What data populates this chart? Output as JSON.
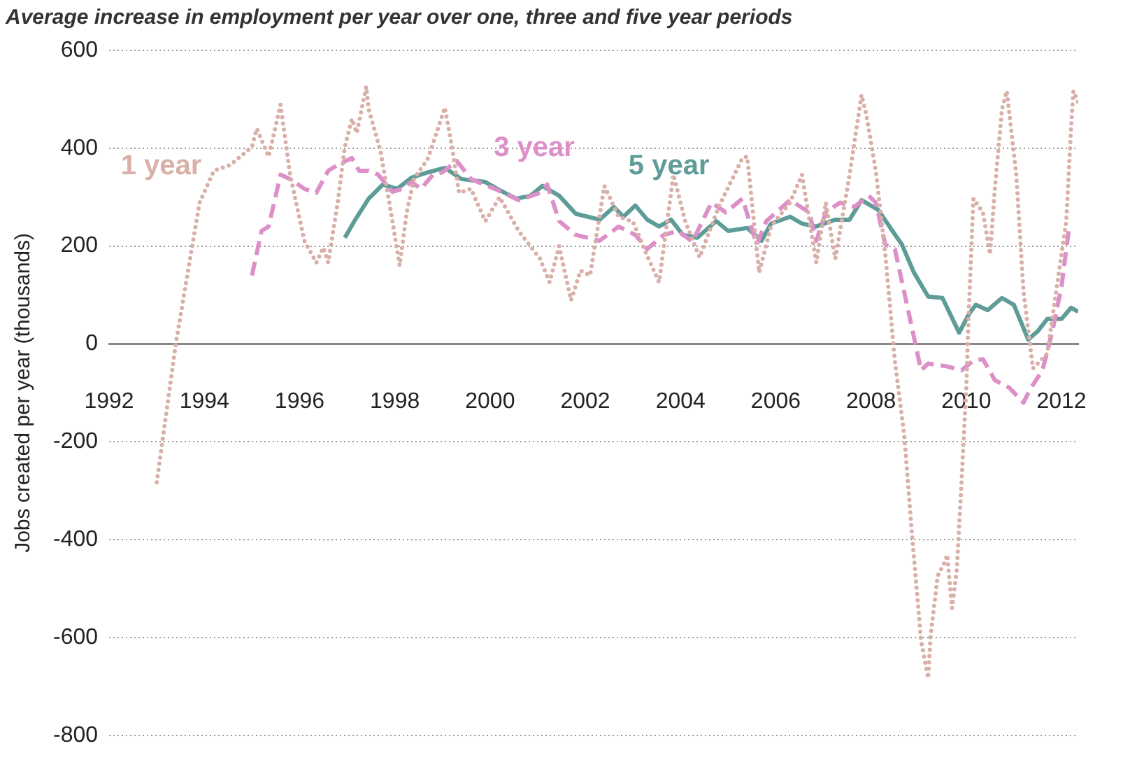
{
  "chart_data": {
    "type": "line",
    "title": "Average increase in employment per year over one, three and five year periods",
    "ylabel": "Jobs created per year (thousands)",
    "xlim": [
      1992,
      2012.35
    ],
    "xticks": [
      1992,
      1994,
      1996,
      1998,
      2000,
      2002,
      2004,
      2006,
      2008,
      2010,
      2012
    ],
    "ylim": [
      -800,
      600
    ],
    "yticks": [
      -800,
      -600,
      -400,
      -200,
      0,
      200,
      400,
      600
    ],
    "grid": "y",
    "legend": false,
    "marker": "none",
    "series": [
      {
        "name": "1 year",
        "color": "#d8b0a8",
        "line_style": "dotted",
        "x": [
          1993.0,
          1993.4,
          1993.7,
          1993.9,
          1994.2,
          1994.55,
          1995.0,
          1995.1,
          1995.35,
          1995.6,
          1995.8,
          1996.1,
          1996.35,
          1996.5,
          1996.6,
          1996.8,
          1996.95,
          1997.1,
          1997.2,
          1997.4,
          1997.45,
          1997.7,
          1997.95,
          1998.1,
          1998.25,
          1998.4,
          1998.7,
          1999.05,
          1999.2,
          1999.35,
          1999.6,
          1999.9,
          2000.2,
          2000.6,
          2001.05,
          2001.25,
          2001.45,
          2001.7,
          2001.9,
          2002.1,
          2002.4,
          2002.7,
          2003.0,
          2003.3,
          2003.55,
          2003.85,
          2004.1,
          2004.4,
          2004.8,
          2005.3,
          2005.4,
          2005.65,
          2005.9,
          2006.3,
          2006.55,
          2006.85,
          2007.05,
          2007.25,
          2007.55,
          2007.8,
          2007.9,
          2008.1,
          2008.3,
          2008.5,
          2008.7,
          2008.85,
          2009.05,
          2009.2,
          2009.25,
          2009.4,
          2009.55,
          2009.6,
          2009.7,
          2009.8,
          2009.9,
          2010.0,
          2010.05,
          2010.15,
          2010.35,
          2010.5,
          2010.6,
          2010.75,
          2010.85,
          2011.05,
          2011.2,
          2011.4,
          2011.7,
          2012.1,
          2012.2,
          2012.25,
          2012.35
        ],
        "values": [
          -283,
          0,
          174,
          289,
          354,
          366,
          403,
          440,
          383,
          489,
          346,
          211,
          166,
          197,
          166,
          289,
          403,
          460,
          431,
          526,
          480,
          394,
          251,
          160,
          269,
          337,
          380,
          483,
          403,
          309,
          317,
          251,
          300,
          231,
          174,
          126,
          200,
          89,
          150,
          140,
          323,
          260,
          250,
          180,
          126,
          346,
          250,
          177,
          280,
          380,
          383,
          146,
          240,
          289,
          346,
          166,
          289,
          174,
          346,
          509,
          469,
          354,
          183,
          -34,
          -189,
          -377,
          -606,
          -683,
          -597,
          -474,
          -446,
          -431,
          -540,
          -463,
          -283,
          -91,
          60,
          297,
          269,
          183,
          317,
          480,
          517,
          346,
          109,
          -50,
          -20,
          251,
          440,
          517,
          494
        ]
      },
      {
        "name": "3 year",
        "color": "#dd8fc8",
        "line_style": "dashed",
        "x": [
          1995.0,
          1995.2,
          1995.35,
          1995.6,
          1995.8,
          1996.1,
          1996.35,
          1996.6,
          1996.8,
          1997.1,
          1997.25,
          1997.45,
          1997.65,
          1997.95,
          1998.15,
          1998.35,
          1998.55,
          1998.8,
          1999.0,
          1999.3,
          1999.6,
          2000.1,
          2000.6,
          2001.05,
          2001.2,
          2001.45,
          2001.8,
          2002.3,
          2002.7,
          2003.05,
          2003.3,
          2003.65,
          2003.95,
          2004.25,
          2004.65,
          2004.95,
          2005.3,
          2005.6,
          2005.8,
          2006.3,
          2006.7,
          2006.85,
          2007.05,
          2007.35,
          2007.65,
          2007.95,
          2008.1,
          2008.3,
          2008.5,
          2008.8,
          2009.05,
          2009.2,
          2009.6,
          2009.9,
          2010.15,
          2010.35,
          2010.6,
          2010.9,
          2011.2,
          2011.35,
          2011.6,
          2011.8,
          2012.0,
          2012.15,
          2012.25
        ],
        "values": [
          140,
          231,
          240,
          346,
          337,
          317,
          309,
          354,
          366,
          380,
          354,
          354,
          346,
          311,
          317,
          331,
          317,
          346,
          351,
          374,
          337,
          317,
          294,
          309,
          326,
          251,
          223,
          211,
          240,
          223,
          194,
          223,
          231,
          209,
          289,
          269,
          297,
          203,
          251,
          294,
          269,
          211,
          269,
          289,
          280,
          303,
          289,
          203,
          194,
          60,
          -54,
          -40,
          -46,
          -54,
          -34,
          -31,
          -74,
          -89,
          -120,
          -91,
          -54,
          23,
          117,
          231,
          240
        ]
      },
      {
        "name": "5 year",
        "color": "#5e9c97",
        "line_style": "solid",
        "x": [
          1996.95,
          1997.15,
          1997.45,
          1997.75,
          1998.05,
          1998.35,
          1998.7,
          1999.05,
          1999.4,
          1999.9,
          2000.15,
          2000.55,
          2000.85,
          2001.1,
          2001.45,
          2001.8,
          2002.3,
          2002.6,
          2002.8,
          2003.05,
          2003.3,
          2003.55,
          2003.8,
          2004.05,
          2004.35,
          2004.75,
          2005.0,
          2005.4,
          2005.7,
          2005.9,
          2006.3,
          2006.55,
          2006.85,
          2007.25,
          2007.55,
          2007.8,
          2008.15,
          2008.45,
          2008.65,
          2008.9,
          2009.2,
          2009.5,
          2009.85,
          2010.05,
          2010.2,
          2010.45,
          2010.75,
          2011.0,
          2011.3,
          2011.5,
          2011.7,
          2012.0,
          2012.2,
          2012.35
        ],
        "values": [
          217,
          251,
          297,
          326,
          317,
          340,
          351,
          360,
          337,
          331,
          317,
          297,
          303,
          323,
          303,
          266,
          254,
          280,
          260,
          283,
          254,
          240,
          254,
          223,
          217,
          251,
          231,
          237,
          211,
          246,
          260,
          246,
          240,
          254,
          254,
          294,
          274,
          231,
          203,
          146,
          97,
          94,
          23,
          60,
          80,
          69,
          94,
          80,
          9,
          26,
          51,
          51,
          74,
          66
        ]
      }
    ]
  }
}
